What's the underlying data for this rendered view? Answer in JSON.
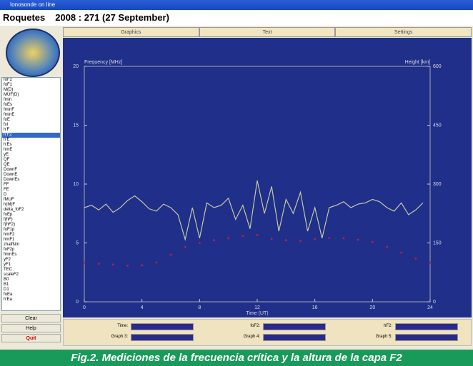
{
  "window": {
    "title": "Ionosonde on line"
  },
  "header": {
    "station": "Roquetes",
    "date": "2008 : 271 (27 September)"
  },
  "tabs": [
    "Graphics",
    "Text",
    "Settings"
  ],
  "parameters": [
    "foF2",
    "foF1",
    "M(D)",
    "MUF(D)",
    "fmin",
    "foEs",
    "fminF",
    "fminE",
    "foE",
    "fxI",
    "h'F",
    "h'F2",
    "h'E",
    "h'Es",
    "hmE",
    "yE",
    "QF",
    "QE",
    "DownF",
    "DownE",
    "DownEs",
    "FF",
    "FE",
    "D",
    "fMUF",
    "h(M)F",
    "delta_foF2",
    "foEp",
    "f(hF)",
    "f(hF2)",
    "foF1p",
    "hmF2",
    "hmF1",
    "zhalfNm",
    "foF2p",
    "fminEs",
    "yF2",
    "yF1",
    "TEC",
    "scaleF2",
    "B0",
    "B1",
    "D1",
    "foEa",
    "h'Ea"
  ],
  "selected_parameter": "h'F2",
  "buttons": [
    "Clear",
    "Help",
    "Quit"
  ],
  "fields": [
    "Time:",
    "foF2:",
    "hF2:",
    "Graph 3:",
    "Graph 4:",
    "Graph 5:"
  ],
  "caption": "Fig.2. Mediciones de la frecuencia crítica y la altura de la capa F2",
  "chart_data": {
    "type": "line",
    "ylabel": "Frequency [MHz]",
    "y2label": "Height [km]",
    "xlabel": "Time (UT)",
    "xlim": [
      0,
      24
    ],
    "xticks": [
      0,
      4,
      8,
      12,
      16,
      20,
      24
    ],
    "ylim": [
      0,
      20
    ],
    "yticks": [
      0,
      5,
      10,
      15,
      20
    ],
    "y2lim": [
      0,
      600
    ],
    "y2ticks": [
      0,
      150,
      300,
      450,
      600
    ],
    "series": [
      {
        "color": "#c8c8a0",
        "style": "line",
        "x": [
          0,
          0.5,
          1,
          1.5,
          2,
          2.5,
          3,
          3.5,
          4,
          4.5,
          5,
          5.5,
          6,
          6.5,
          7,
          7.5,
          8,
          8.5,
          9,
          9.5,
          10,
          10.5,
          11,
          11.5,
          12,
          12.5,
          13,
          13.5,
          14,
          14.5,
          15,
          15.5,
          16,
          16.5,
          17,
          17.5,
          18,
          18.5,
          19,
          19.5,
          20,
          20.5,
          21,
          21.5,
          22,
          22.5,
          23,
          23.5
        ],
        "values": [
          8,
          8.2,
          7.8,
          8.3,
          7.6,
          8,
          8.6,
          9,
          8.5,
          7.9,
          7.7,
          8.3,
          8,
          7.4,
          5.3,
          8,
          5.4,
          8.4,
          8,
          8.2,
          8.8,
          7,
          8.2,
          6.2,
          10.3,
          7.5,
          9.8,
          6,
          8.7,
          7.5,
          9.3,
          6,
          8,
          5.4,
          8,
          8.2,
          8.5,
          8,
          8.3,
          8.4,
          8.7,
          8.5,
          8,
          7.7,
          8.4,
          7.4,
          7.8,
          8.4
        ]
      },
      {
        "color": "#b0204a",
        "style": "points",
        "axis": "y2",
        "x": [
          0,
          1,
          2,
          3,
          4,
          5,
          6,
          7,
          8,
          9,
          10,
          11,
          12,
          13,
          14,
          15,
          16,
          17,
          18,
          19,
          20,
          21,
          22,
          23,
          24
        ],
        "values": [
          100,
          97,
          95,
          92,
          93,
          100,
          120,
          140,
          150,
          157,
          162,
          168,
          170,
          160,
          157,
          155,
          160,
          163,
          162,
          158,
          152,
          140,
          125,
          110,
          100
        ]
      }
    ]
  }
}
